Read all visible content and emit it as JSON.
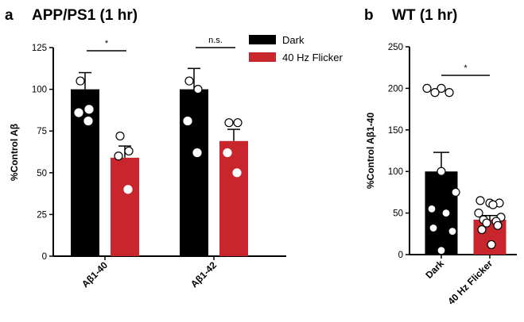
{
  "colors": {
    "dark": "#000000",
    "flicker": "#c9252d",
    "axis": "#000000",
    "point_fill": "#ffffff"
  },
  "chart_data": [
    {
      "type": "bar",
      "panel_letter": "a",
      "title": "APP/PS1 (1 hr)",
      "ylabel": "%Control Aβ",
      "xlabel": "",
      "ylim": [
        0,
        125
      ],
      "yticks": [
        0,
        25,
        50,
        75,
        100,
        125
      ],
      "grid": false,
      "legend_position": "top-right",
      "categories": [
        "Aβ1-40",
        "Aβ1-42"
      ],
      "series": [
        {
          "name": "Dark",
          "color_key": "dark",
          "values": [
            100,
            100
          ],
          "sem": [
            10,
            12.5
          ],
          "points": [
            [
              105,
              88,
              86,
              81
            ],
            [
              105,
              100,
              81,
              62
            ]
          ]
        },
        {
          "name": "40 Hz Flicker",
          "color_key": "flicker",
          "values": [
            59,
            69
          ],
          "sem": [
            7,
            7
          ],
          "points": [
            [
              72,
              63,
              60,
              40
            ],
            [
              80,
              80,
              62,
              50
            ]
          ]
        }
      ],
      "significance": [
        {
          "category_index": 0,
          "label": "*"
        },
        {
          "category_index": 1,
          "label": "n.s."
        }
      ]
    },
    {
      "type": "bar",
      "panel_letter": "b",
      "title": "WT (1 hr)",
      "ylabel": "%Control Aβ1-40",
      "xlabel": "",
      "ylim": [
        0,
        250
      ],
      "yticks": [
        0,
        50,
        100,
        150,
        200,
        250
      ],
      "grid": false,
      "categories": [
        "Dark",
        "40 Hz Flicker"
      ],
      "values": [
        100,
        42
      ],
      "sem": [
        23,
        5
      ],
      "color_keys": [
        "dark",
        "flicker"
      ],
      "points": [
        [
          200,
          200,
          195,
          195,
          100,
          75,
          55,
          50,
          32,
          28,
          5
        ],
        [
          65,
          62,
          62,
          60,
          50,
          45,
          42,
          40,
          38,
          35,
          30,
          12
        ]
      ],
      "significance": [
        {
          "from": 0,
          "to": 1,
          "label": "*"
        }
      ]
    }
  ]
}
